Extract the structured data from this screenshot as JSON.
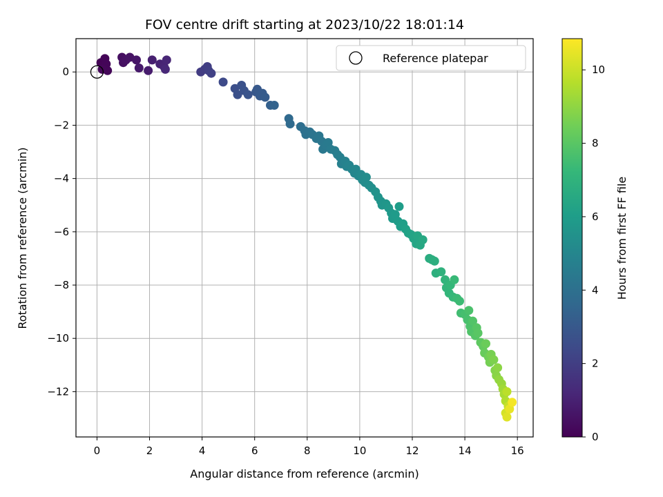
{
  "chart_data": {
    "type": "scatter",
    "title": "FOV centre drift starting at 2023/10/22 18:01:14",
    "xlabel": "Angular distance from reference (arcmin)",
    "ylabel": "Rotation from reference (arcmin)",
    "xlim": [
      -0.8,
      16.6
    ],
    "ylim": [
      -13.7,
      1.25
    ],
    "xticks": [
      0,
      2,
      4,
      6,
      8,
      10,
      12,
      14,
      16
    ],
    "yticks": [
      0,
      -2,
      -4,
      -6,
      -8,
      -10,
      -12
    ],
    "xtick_labels": [
      "0",
      "2",
      "4",
      "6",
      "8",
      "10",
      "12",
      "14",
      "16"
    ],
    "ytick_labels": [
      "0",
      "−2",
      "−4",
      "−6",
      "−8",
      "−10",
      "−12"
    ],
    "grid": true,
    "legend": {
      "placement": "top-right",
      "entries": [
        "Reference platepar"
      ]
    },
    "reference_point": {
      "x": 0,
      "y": 0
    },
    "colorbar": {
      "label": "Hours from first FF file",
      "range": [
        0,
        10.85
      ],
      "ticks": [
        0,
        2,
        4,
        6,
        8,
        10
      ],
      "tick_labels": [
        "0",
        "2",
        "4",
        "6",
        "8",
        "10"
      ],
      "colormap": "viridis"
    },
    "points": [
      [
        0.15,
        0.35,
        0.05
      ],
      [
        0.25,
        0.25,
        0.08
      ],
      [
        0.3,
        0.5,
        0.1
      ],
      [
        0.35,
        0.3,
        0.12
      ],
      [
        0.4,
        0.05,
        0.15
      ],
      [
        0.2,
        0.1,
        0.18
      ],
      [
        0.95,
        0.55,
        0.4
      ],
      [
        1.0,
        0.35,
        0.45
      ],
      [
        1.1,
        0.45,
        0.5
      ],
      [
        1.25,
        0.55,
        0.55
      ],
      [
        1.5,
        0.45,
        0.65
      ],
      [
        1.6,
        0.15,
        0.75
      ],
      [
        1.95,
        0.05,
        0.85
      ],
      [
        2.1,
        0.45,
        0.95
      ],
      [
        2.4,
        0.3,
        1.05
      ],
      [
        2.55,
        0.2,
        1.1
      ],
      [
        2.65,
        0.45,
        1.15
      ],
      [
        2.6,
        0.1,
        1.2
      ],
      [
        3.95,
        0.0,
        1.9
      ],
      [
        4.1,
        0.1,
        1.95
      ],
      [
        4.2,
        0.2,
        2.0
      ],
      [
        4.25,
        0.05,
        2.05
      ],
      [
        4.35,
        -0.05,
        2.1
      ],
      [
        4.8,
        -0.38,
        2.4
      ],
      [
        5.25,
        -0.62,
        2.6
      ],
      [
        5.35,
        -0.85,
        2.65
      ],
      [
        5.5,
        -0.5,
        2.7
      ],
      [
        5.6,
        -0.7,
        2.75
      ],
      [
        5.75,
        -0.85,
        2.8
      ],
      [
        6.05,
        -0.75,
        2.95
      ],
      [
        6.1,
        -0.65,
        3.0
      ],
      [
        6.2,
        -0.9,
        3.05
      ],
      [
        6.3,
        -0.8,
        3.1
      ],
      [
        6.4,
        -0.95,
        3.15
      ],
      [
        6.6,
        -1.25,
        3.3
      ],
      [
        6.75,
        -1.25,
        3.4
      ],
      [
        7.3,
        -1.75,
        3.7
      ],
      [
        7.35,
        -1.95,
        3.75
      ],
      [
        7.75,
        -2.05,
        3.9
      ],
      [
        7.9,
        -2.2,
        4.0
      ],
      [
        7.95,
        -2.35,
        4.05
      ],
      [
        8.1,
        -2.25,
        4.1
      ],
      [
        8.2,
        -2.35,
        4.15
      ],
      [
        8.35,
        -2.5,
        4.2
      ],
      [
        8.45,
        -2.4,
        4.25
      ],
      [
        8.55,
        -2.6,
        4.3
      ],
      [
        8.6,
        -2.9,
        4.35
      ],
      [
        8.7,
        -2.75,
        4.4
      ],
      [
        8.8,
        -2.65,
        4.45
      ],
      [
        8.9,
        -2.9,
        4.5
      ],
      [
        9.05,
        -2.95,
        4.6
      ],
      [
        9.15,
        -3.1,
        4.65
      ],
      [
        9.25,
        -3.2,
        4.7
      ],
      [
        9.3,
        -3.45,
        4.75
      ],
      [
        9.45,
        -3.35,
        4.8
      ],
      [
        9.5,
        -3.55,
        4.85
      ],
      [
        9.6,
        -3.5,
        4.9
      ],
      [
        9.7,
        -3.65,
        4.95
      ],
      [
        9.8,
        -3.8,
        5.0
      ],
      [
        9.85,
        -3.65,
        5.05
      ],
      [
        9.95,
        -3.9,
        5.1
      ],
      [
        10.05,
        -3.85,
        5.15
      ],
      [
        10.1,
        -4.05,
        5.2
      ],
      [
        10.2,
        -4.15,
        5.25
      ],
      [
        10.25,
        -3.95,
        5.3
      ],
      [
        10.35,
        -4.25,
        5.35
      ],
      [
        10.45,
        -4.35,
        5.4
      ],
      [
        10.6,
        -4.5,
        5.5
      ],
      [
        10.7,
        -4.7,
        5.55
      ],
      [
        10.8,
        -4.85,
        5.6
      ],
      [
        10.85,
        -5.0,
        5.65
      ],
      [
        11.0,
        -4.95,
        5.7
      ],
      [
        11.1,
        -5.1,
        5.75
      ],
      [
        11.2,
        -5.3,
        5.8
      ],
      [
        11.25,
        -5.5,
        5.85
      ],
      [
        11.35,
        -5.35,
        5.9
      ],
      [
        11.45,
        -5.6,
        5.95
      ],
      [
        11.5,
        -5.05,
        6.0
      ],
      [
        11.55,
        -5.8,
        6.05
      ],
      [
        11.65,
        -5.7,
        6.1
      ],
      [
        11.75,
        -5.9,
        6.15
      ],
      [
        11.85,
        -6.05,
        6.2
      ],
      [
        11.95,
        -6.1,
        6.25
      ],
      [
        12.05,
        -6.25,
        6.3
      ],
      [
        12.15,
        -6.45,
        6.35
      ],
      [
        12.2,
        -6.15,
        6.4
      ],
      [
        12.3,
        -6.5,
        6.45
      ],
      [
        12.4,
        -6.3,
        6.5
      ],
      [
        12.65,
        -7.0,
        6.7
      ],
      [
        12.75,
        -7.05,
        6.75
      ],
      [
        12.85,
        -7.1,
        6.8
      ],
      [
        12.9,
        -7.55,
        6.85
      ],
      [
        13.1,
        -7.5,
        6.95
      ],
      [
        13.25,
        -7.8,
        7.05
      ],
      [
        13.3,
        -8.1,
        7.1
      ],
      [
        13.4,
        -8.3,
        7.15
      ],
      [
        13.45,
        -8.0,
        7.2
      ],
      [
        13.55,
        -8.45,
        7.25
      ],
      [
        13.6,
        -7.8,
        7.3
      ],
      [
        13.7,
        -8.5,
        7.35
      ],
      [
        13.8,
        -8.6,
        7.4
      ],
      [
        13.85,
        -9.05,
        7.5
      ],
      [
        14.0,
        -9.1,
        7.6
      ],
      [
        14.1,
        -9.3,
        7.65
      ],
      [
        14.15,
        -8.95,
        7.7
      ],
      [
        14.2,
        -9.55,
        7.75
      ],
      [
        14.25,
        -9.75,
        7.8
      ],
      [
        14.3,
        -9.35,
        7.85
      ],
      [
        14.4,
        -9.9,
        7.9
      ],
      [
        14.45,
        -9.6,
        7.95
      ],
      [
        14.5,
        -9.8,
        8.0
      ],
      [
        14.6,
        -10.15,
        8.1
      ],
      [
        14.7,
        -10.3,
        8.2
      ],
      [
        14.75,
        -10.55,
        8.3
      ],
      [
        14.8,
        -10.2,
        8.35
      ],
      [
        14.9,
        -10.7,
        8.45
      ],
      [
        14.95,
        -10.9,
        8.55
      ],
      [
        15.0,
        -10.6,
        8.6
      ],
      [
        15.1,
        -10.8,
        8.7
      ],
      [
        15.15,
        -11.2,
        8.8
      ],
      [
        15.2,
        -11.4,
        8.9
      ],
      [
        15.25,
        -11.1,
        8.95
      ],
      [
        15.3,
        -11.55,
        9.05
      ],
      [
        15.4,
        -11.7,
        9.15
      ],
      [
        15.45,
        -11.9,
        9.3
      ],
      [
        15.5,
        -12.1,
        9.45
      ],
      [
        15.55,
        -12.35,
        9.6
      ],
      [
        15.6,
        -12.0,
        9.75
      ],
      [
        15.65,
        -12.55,
        9.95
      ],
      [
        15.55,
        -12.8,
        10.15
      ],
      [
        15.6,
        -12.95,
        10.35
      ],
      [
        15.7,
        -12.65,
        10.5
      ],
      [
        15.8,
        -12.4,
        10.7
      ]
    ]
  }
}
